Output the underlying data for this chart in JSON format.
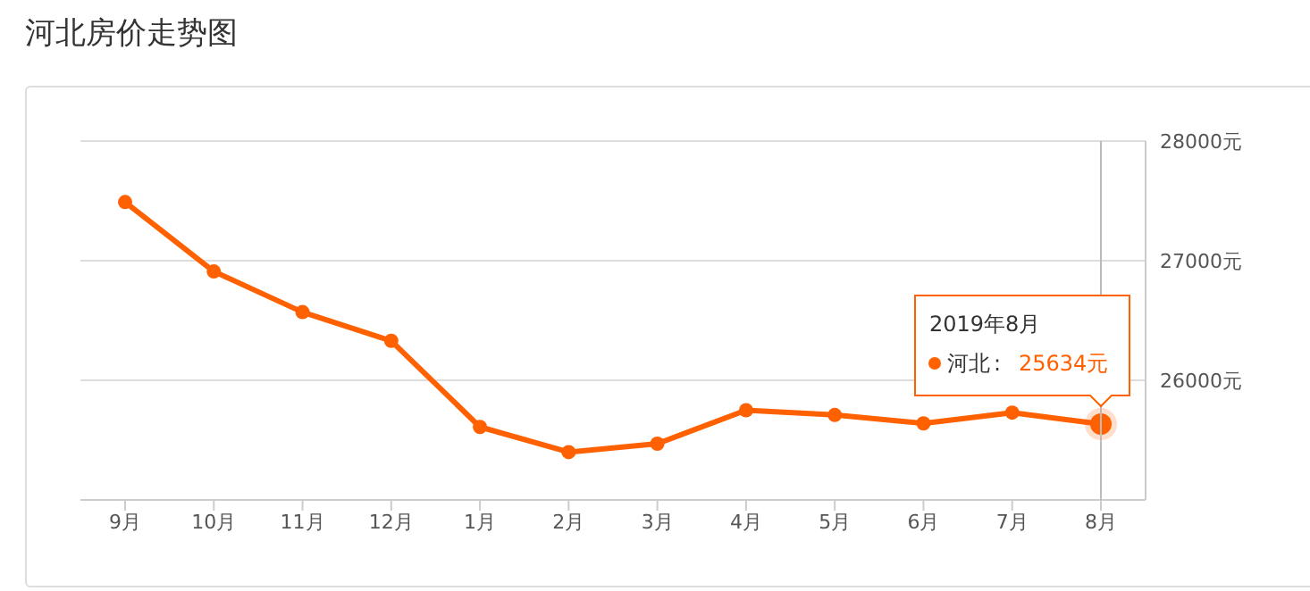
{
  "chart_data": {
    "type": "line",
    "title": "河北房价走势图",
    "categories": [
      "9月",
      "10月",
      "11月",
      "12月",
      "1月",
      "2月",
      "3月",
      "4月",
      "5月",
      "6月",
      "7月",
      "8月"
    ],
    "series": [
      {
        "name": "河北",
        "color": "#ff6000",
        "values": [
          27490,
          26910,
          26570,
          26330,
          25610,
          25400,
          25470,
          25750,
          25710,
          25640,
          25730,
          25634
        ],
        "value_labels": [
          null,
          null,
          null,
          null,
          null,
          null,
          null,
          null,
          null,
          null,
          null,
          "25634元"
        ]
      }
    ],
    "ylim": [
      25000,
      28000
    ],
    "yticks": [
      {
        "value": 25000,
        "label": null
      },
      {
        "value": 26000,
        "label": "26000元"
      },
      {
        "value": 27000,
        "label": "27000元"
      },
      {
        "value": 28000,
        "label": "28000元"
      }
    ],
    "annotations": [
      "2019年8月",
      ":"
    ],
    "ref_lines": [
      {
        "axis": "x",
        "value": "8月",
        "color": "#bbbbbb"
      }
    ],
    "grid": "y",
    "marker": "circle",
    "line_style": "solid",
    "legend": "right"
  }
}
